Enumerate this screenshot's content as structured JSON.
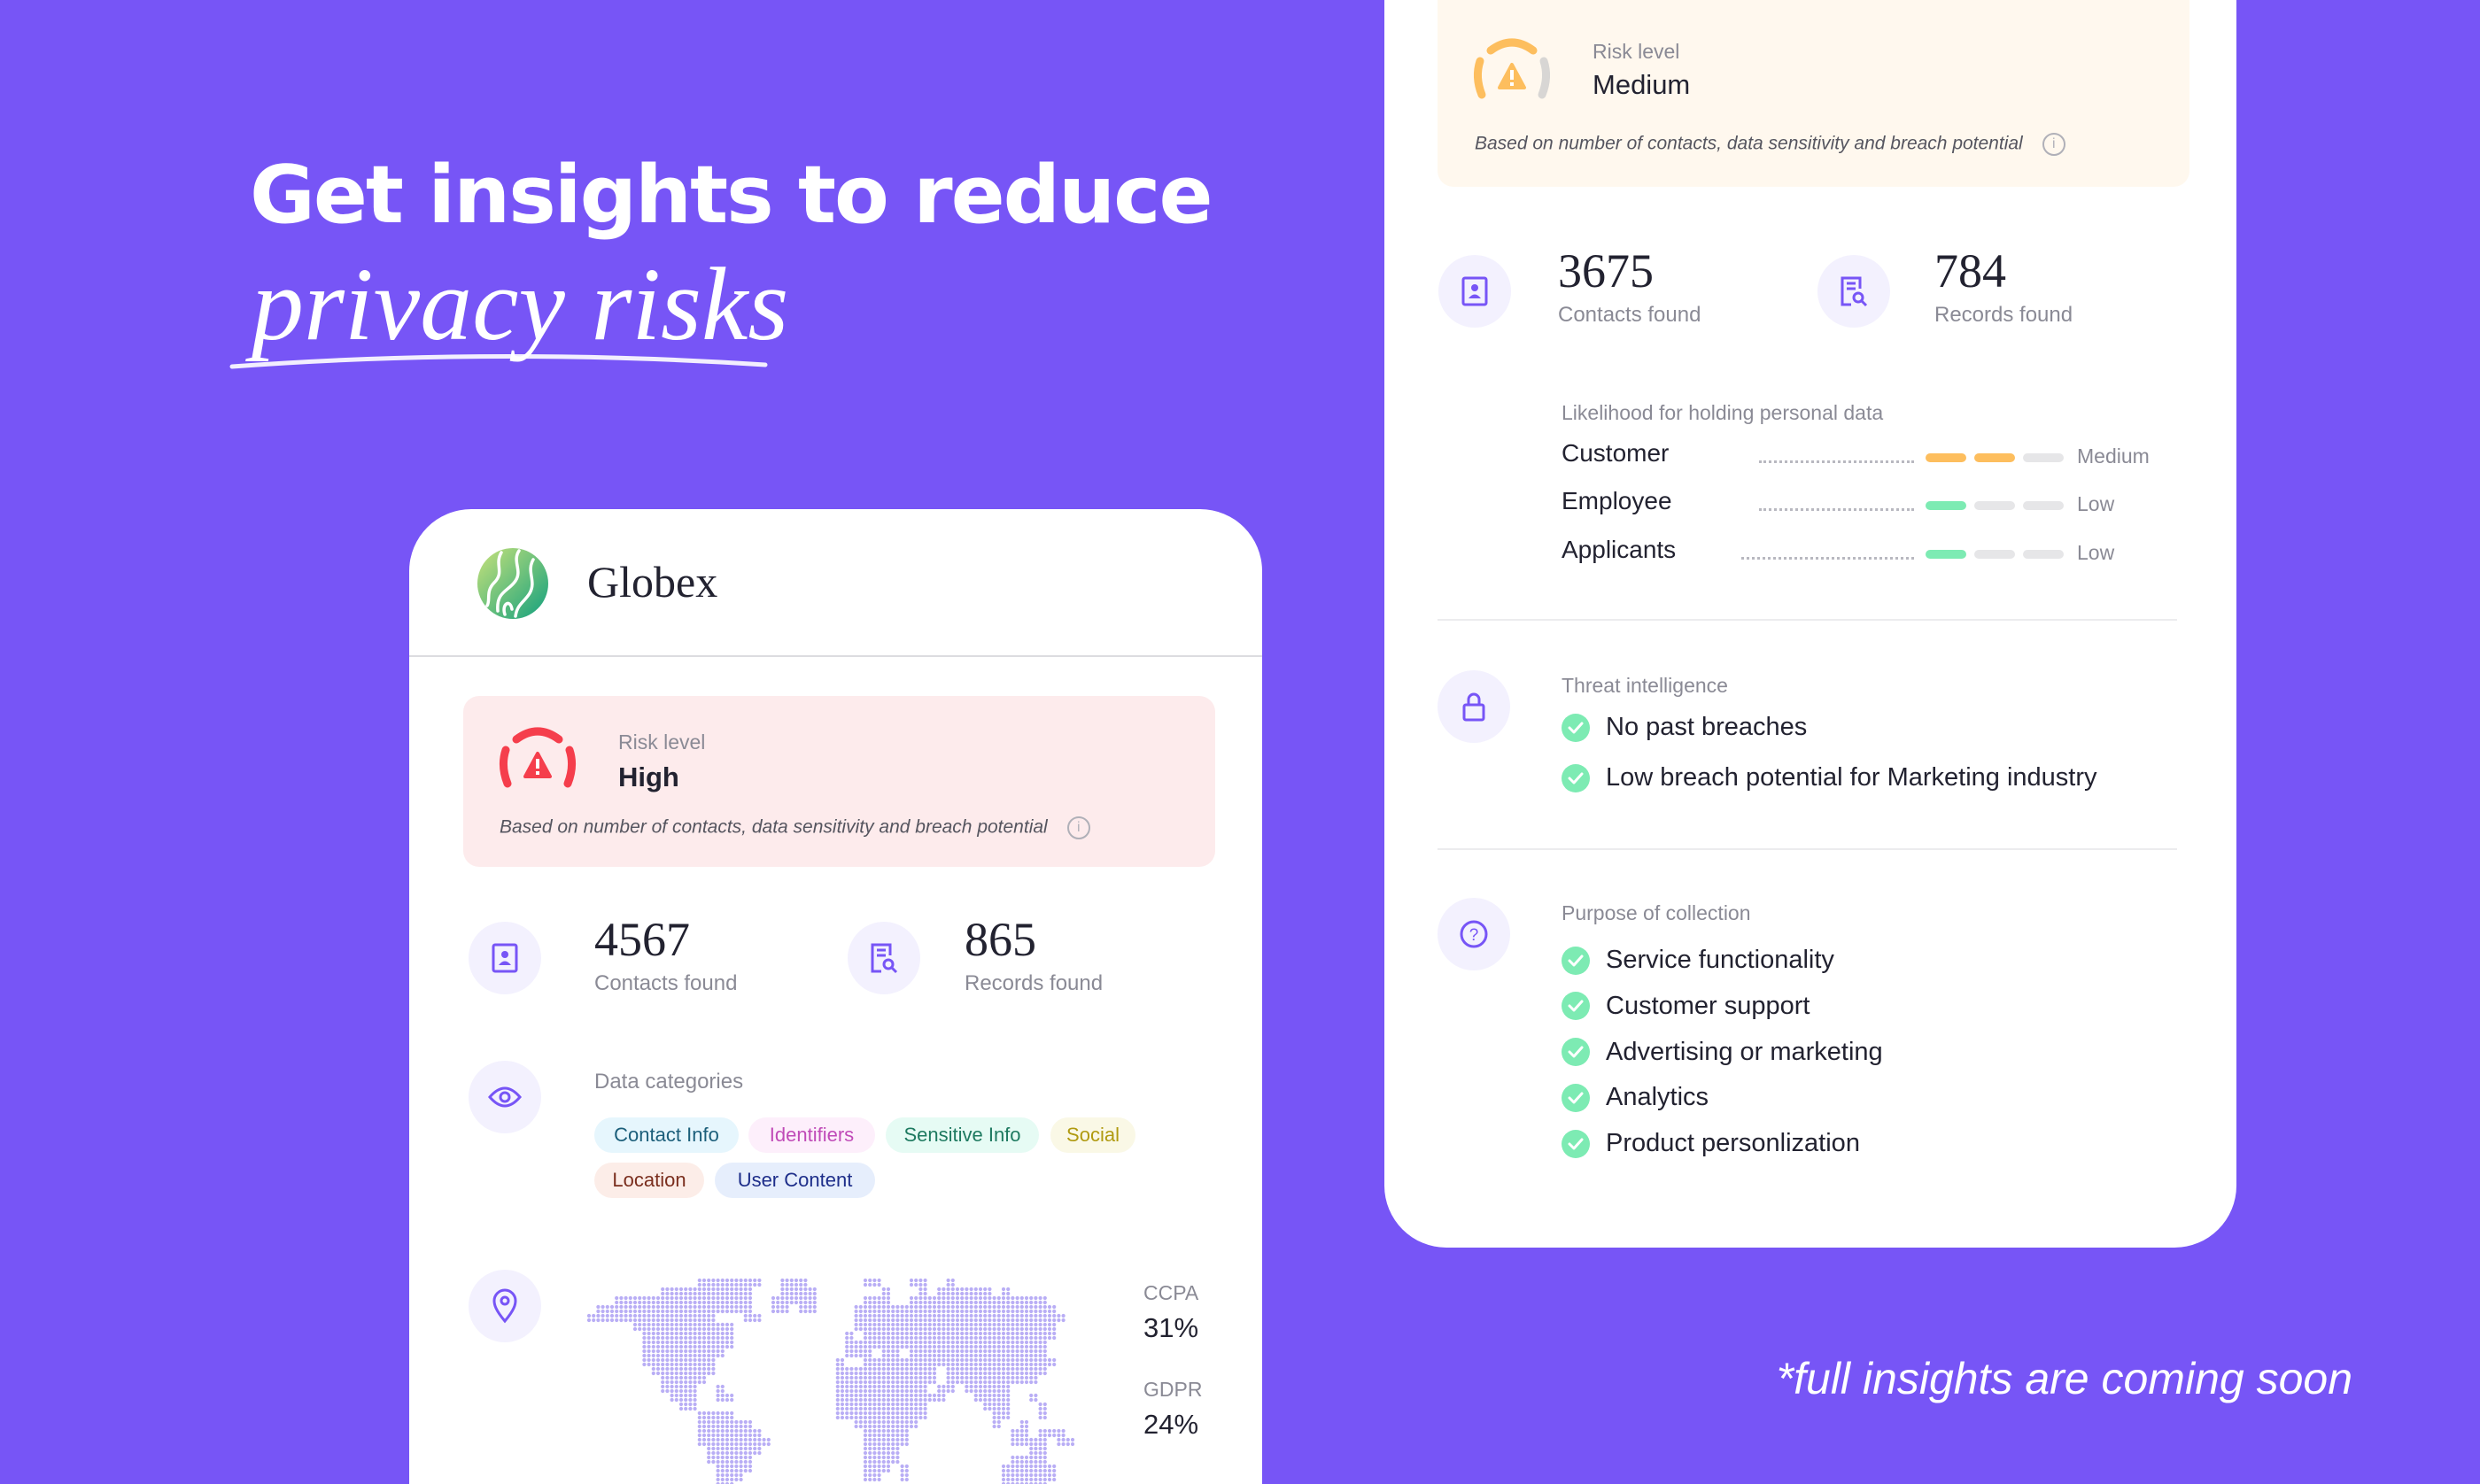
{
  "headline": {
    "line1": "Get insights to reduce",
    "line2": "privacy risks"
  },
  "colors": {
    "background": "#7755F6",
    "accent": "#7755F6",
    "high": "#F53E4C",
    "medium": "#FDBE5E",
    "low": "#7DEBB3",
    "check": "#7DEBB3"
  },
  "left_card": {
    "company": "Globex",
    "logo_icon": "globe-waves-logo",
    "risk": {
      "label": "Risk level",
      "value": "High",
      "note": "Based on number of contacts, data sensitivity and breach potential",
      "icon": "gauge-warning-icon"
    },
    "stats": [
      {
        "value": "4567",
        "label": "Contacts found",
        "icon": "contact-card-icon"
      },
      {
        "value": "865",
        "label": "Records found",
        "icon": "document-search-icon"
      }
    ],
    "categories": {
      "label": "Data categories",
      "icon": "eye-icon",
      "chips": [
        {
          "label": "Contact Info",
          "bg": "#E6F6FD",
          "fg": "#1B5E7A"
        },
        {
          "label": "Identifiers",
          "bg": "#FDEFFB",
          "fg": "#C04BB8"
        },
        {
          "label": "Sensitive Info",
          "bg": "#E6FBF4",
          "fg": "#1E7A60"
        },
        {
          "label": "Social",
          "bg": "#FAF8E6",
          "fg": "#B09A10"
        },
        {
          "label": "Location",
          "bg": "#FCEDE8",
          "fg": "#7A2E1E"
        },
        {
          "label": "User Content",
          "bg": "#E6EEFC",
          "fg": "#1E2E8A"
        }
      ]
    },
    "regions": {
      "icon": "location-pin-icon",
      "items": [
        {
          "label": "CCPA",
          "value": "31%"
        },
        {
          "label": "GDPR",
          "value": "24%"
        }
      ]
    }
  },
  "right_card": {
    "risk": {
      "label": "Risk level",
      "value": "Medium",
      "note": "Based on number of contacts, data sensitivity and breach potential"
    },
    "stats": [
      {
        "value": "3675",
        "label": "Contacts found"
      },
      {
        "value": "784",
        "label": "Records found"
      }
    ],
    "likelihood": {
      "label": "Likelihood for holding personal data",
      "rows": [
        {
          "label": "Customer",
          "level": "Medium",
          "filled": 2,
          "of": 3
        },
        {
          "label": "Employee",
          "level": "Low",
          "filled": 1,
          "of": 3
        },
        {
          "label": "Applicants",
          "level": "Low",
          "filled": 1,
          "of": 3
        }
      ]
    },
    "threat": {
      "label": "Threat intelligence",
      "icon": "lock-icon",
      "items": [
        "No past breaches",
        "Low breach potential for Marketing industry"
      ]
    },
    "purpose": {
      "label": "Purpose of collection",
      "icon": "question-circle-icon",
      "items": [
        "Service functionality",
        "Customer support",
        "Advertising or marketing",
        "Analytics",
        "Product personlization"
      ]
    }
  },
  "footer": "*full insights are coming soon"
}
